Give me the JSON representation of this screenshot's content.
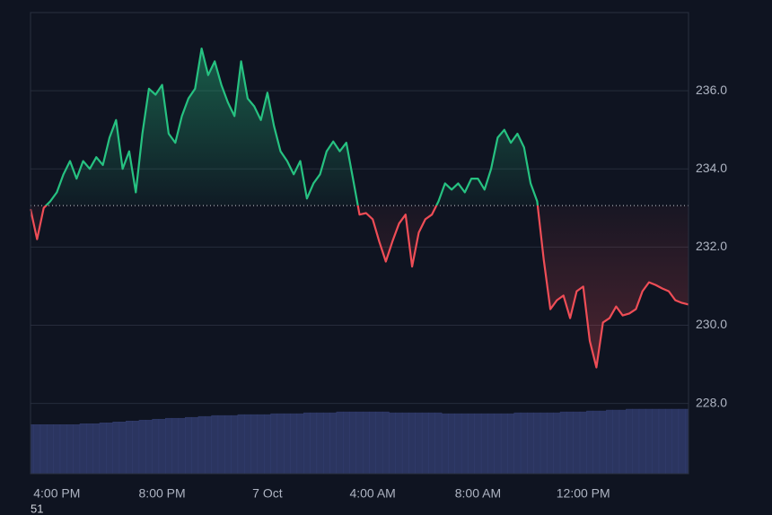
{
  "chart_data": {
    "type": "baseline",
    "categories": [
      null,
      null,
      null,
      null,
      "4:00 PM",
      null,
      null,
      null,
      null,
      null,
      null,
      null,
      null,
      null,
      null,
      null,
      null,
      null,
      null,
      null,
      "8:00 PM",
      null,
      null,
      null,
      null,
      null,
      null,
      null,
      null,
      null,
      null,
      null,
      null,
      null,
      null,
      null,
      "7 Oct",
      null,
      null,
      null,
      null,
      null,
      null,
      null,
      null,
      null,
      null,
      null,
      null,
      null,
      null,
      null,
      "4:00 AM",
      null,
      null,
      null,
      null,
      null,
      null,
      null,
      null,
      null,
      null,
      null,
      null,
      null,
      null,
      null,
      "8:00 AM",
      null,
      null,
      null,
      null,
      null,
      null,
      null,
      null,
      null,
      null,
      null,
      null,
      null,
      null,
      null,
      "12:00 PM",
      null,
      null,
      null,
      null,
      null,
      null,
      null,
      null,
      null,
      null,
      null,
      null,
      null,
      null,
      null,
      null
    ],
    "values": [
      232.97,
      232.2,
      233.0,
      233.17,
      233.4,
      233.86,
      234.2,
      233.75,
      234.2,
      234.0,
      234.3,
      234.1,
      234.8,
      235.25,
      234.0,
      234.45,
      233.4,
      234.9,
      236.05,
      235.9,
      236.15,
      234.9,
      234.67,
      235.35,
      235.8,
      236.05,
      237.08,
      236.4,
      236.75,
      236.15,
      235.7,
      235.35,
      236.75,
      235.8,
      235.6,
      235.25,
      235.95,
      235.1,
      234.45,
      234.2,
      233.86,
      234.2,
      233.24,
      233.63,
      233.86,
      234.45,
      234.7,
      234.45,
      234.67,
      233.75,
      232.83,
      232.87,
      232.71,
      232.14,
      231.63,
      232.14,
      232.6,
      232.83,
      231.5,
      232.37,
      232.71,
      232.83,
      233.17,
      233.63,
      233.47,
      233.63,
      233.4,
      233.75,
      233.75,
      233.47,
      234.0,
      234.8,
      235.0,
      234.67,
      234.9,
      234.55,
      233.63,
      233.17,
      231.68,
      230.41,
      230.64,
      230.76,
      230.18,
      230.87,
      230.99,
      229.6,
      228.92,
      230.07,
      230.18,
      230.48,
      230.25,
      230.3,
      230.41,
      230.87,
      231.1,
      231.03,
      230.94,
      230.87,
      230.64,
      230.57,
      230.53
    ],
    "baseline": 233.06,
    "up_color": "#26c281",
    "down_color": "#ef4d56",
    "volume": {
      "color": "#2b3560",
      "values": [
        54,
        54,
        54,
        54,
        54,
        54,
        54,
        54,
        55,
        55,
        55,
        56,
        56,
        57,
        57,
        58,
        58,
        59,
        59,
        60,
        60,
        61,
        61,
        61,
        62,
        62,
        63,
        63,
        64,
        64,
        64,
        64,
        65,
        65,
        65,
        65,
        65,
        66,
        66,
        66,
        66,
        66,
        67,
        67,
        67,
        67,
        67,
        68,
        68,
        68,
        68,
        68,
        68,
        68,
        68,
        67,
        67,
        67,
        67,
        67,
        67,
        67,
        67,
        66,
        66,
        66,
        66,
        66,
        66,
        66,
        66,
        66,
        66,
        66,
        67,
        67,
        67,
        67,
        67,
        67,
        67,
        68,
        68,
        68,
        68,
        69,
        69,
        69,
        70,
        70,
        70,
        71,
        71,
        71,
        71,
        71,
        71,
        71,
        71,
        71,
        71
      ]
    },
    "volume_label": "51",
    "ylim": [
      226.2,
      238.0
    ],
    "yticks": [
      {
        "value": 228,
        "label": "228.0"
      },
      {
        "value": 230,
        "label": "230.0"
      },
      {
        "value": 232,
        "label": "232.0"
      },
      {
        "value": 234,
        "label": "234.0"
      },
      {
        "value": 236,
        "label": "236.0"
      }
    ],
    "grid": true
  }
}
